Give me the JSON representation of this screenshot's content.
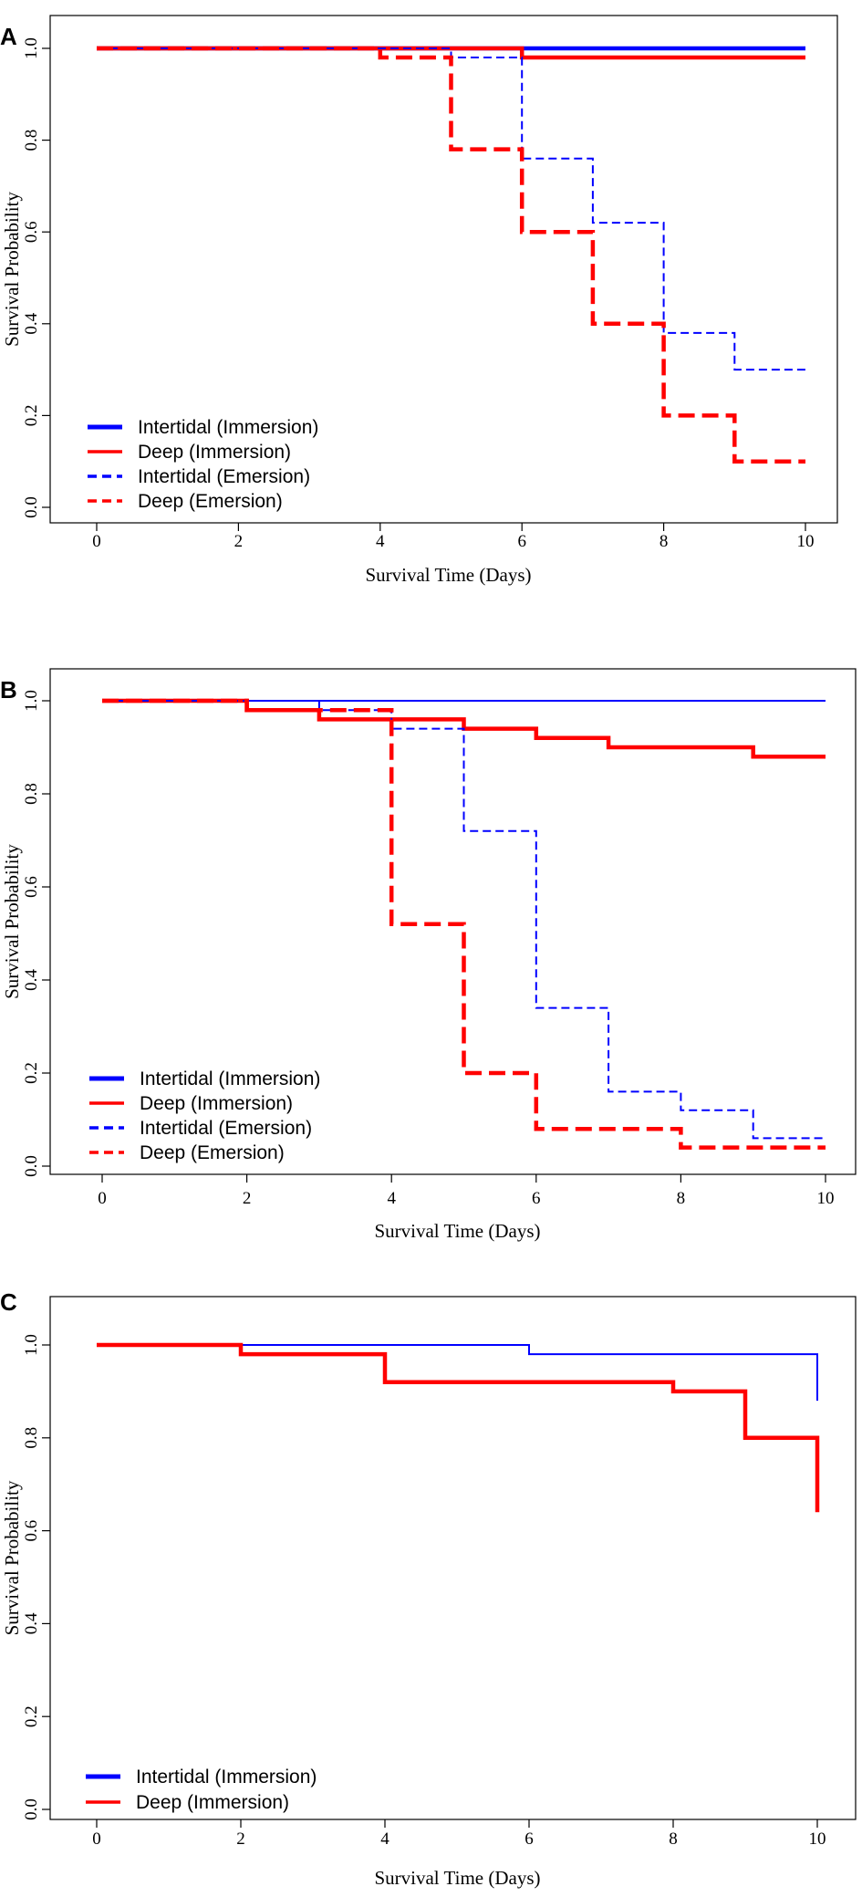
{
  "chart_data": [
    {
      "panel": "A",
      "type": "line",
      "xlabel": "Survival Time (Days)",
      "ylabel": "Survival Probability",
      "xlim": [
        0,
        10
      ],
      "ylim": [
        0,
        1
      ],
      "xticks": [
        "0",
        "2",
        "4",
        "6",
        "8",
        "10"
      ],
      "yticks": [
        "0.0",
        "0.2",
        "0.4",
        "0.6",
        "0.8",
        "1.0"
      ],
      "legend_position": "bottom-left",
      "series": [
        {
          "name": "Intertidal (Immersion)",
          "color": "#0000ff",
          "style": "solid",
          "weight": "thick",
          "steps": [
            [
              0,
              1.0
            ],
            [
              10,
              1.0
            ]
          ]
        },
        {
          "name": "Deep (Immersion)",
          "color": "#ff0000",
          "style": "solid",
          "weight": "thick",
          "steps": [
            [
              0,
              1.0
            ],
            [
              6,
              0.98
            ],
            [
              10,
              0.98
            ]
          ]
        },
        {
          "name": "Intertidal (Emersion)",
          "color": "#0000ff",
          "style": "dashed",
          "weight": "thin",
          "steps": [
            [
              0,
              1.0
            ],
            [
              5,
              0.98
            ],
            [
              6,
              0.76
            ],
            [
              7,
              0.62
            ],
            [
              8,
              0.38
            ],
            [
              9,
              0.3
            ],
            [
              10,
              0.3
            ]
          ]
        },
        {
          "name": "Deep (Emersion)",
          "color": "#ff0000",
          "style": "dashed",
          "weight": "thick",
          "steps": [
            [
              0,
              1.0
            ],
            [
              4,
              0.98
            ],
            [
              5,
              0.78
            ],
            [
              6,
              0.6
            ],
            [
              7,
              0.4
            ],
            [
              8,
              0.2
            ],
            [
              9,
              0.1
            ],
            [
              10,
              0.1
            ]
          ]
        }
      ]
    },
    {
      "panel": "B",
      "type": "line",
      "xlabel": "Survival Time (Days)",
      "ylabel": "Survival Probability",
      "xlim": [
        0,
        10
      ],
      "ylim": [
        0,
        1
      ],
      "xticks": [
        "0",
        "2",
        "4",
        "6",
        "8",
        "10"
      ],
      "yticks": [
        "0.0",
        "0.2",
        "0.4",
        "0.6",
        "0.8",
        "1.0"
      ],
      "legend_position": "bottom-left",
      "series": [
        {
          "name": "Intertidal (Immersion)",
          "color": "#0000ff",
          "style": "solid",
          "weight": "thin",
          "steps": [
            [
              0,
              1.0
            ],
            [
              10,
              1.0
            ]
          ]
        },
        {
          "name": "Deep (Immersion)",
          "color": "#ff0000",
          "style": "solid",
          "weight": "thick",
          "steps": [
            [
              0,
              1.0
            ],
            [
              2,
              0.98
            ],
            [
              3,
              0.96
            ],
            [
              5,
              0.94
            ],
            [
              6,
              0.92
            ],
            [
              7,
              0.9
            ],
            [
              9,
              0.88
            ],
            [
              10,
              0.88
            ]
          ]
        },
        {
          "name": "Intertidal (Emersion)",
          "color": "#0000ff",
          "style": "dashed",
          "weight": "thin",
          "steps": [
            [
              0,
              1.0
            ],
            [
              3,
              0.98
            ],
            [
              4,
              0.94
            ],
            [
              5,
              0.72
            ],
            [
              6,
              0.34
            ],
            [
              7,
              0.16
            ],
            [
              8,
              0.12
            ],
            [
              9,
              0.06
            ],
            [
              10,
              0.06
            ]
          ]
        },
        {
          "name": "Deep (Emersion)",
          "color": "#ff0000",
          "style": "dashed",
          "weight": "thick",
          "steps": [
            [
              0,
              1.0
            ],
            [
              2,
              0.98
            ],
            [
              4,
              0.52
            ],
            [
              5,
              0.2
            ],
            [
              6,
              0.08
            ],
            [
              8,
              0.04
            ],
            [
              10,
              0.04
            ]
          ]
        }
      ]
    },
    {
      "panel": "C",
      "type": "line",
      "xlabel": "Survival Time (Days)",
      "ylabel": "Survival Probability",
      "xlim": [
        0,
        10
      ],
      "ylim": [
        0,
        1
      ],
      "xticks": [
        "0",
        "2",
        "4",
        "6",
        "8",
        "10"
      ],
      "yticks": [
        "0.0",
        "0.2",
        "0.4",
        "0.6",
        "0.8",
        "1.0"
      ],
      "legend_position": "bottom-left",
      "series": [
        {
          "name": "Intertidal (Immersion)",
          "color": "#0000ff",
          "style": "solid",
          "weight": "thin",
          "steps": [
            [
              0,
              1.0
            ],
            [
              6,
              0.98
            ],
            [
              10,
              0.88
            ]
          ]
        },
        {
          "name": "Deep (Immersion)",
          "color": "#ff0000",
          "style": "solid",
          "weight": "thick",
          "steps": [
            [
              0,
              1.0
            ],
            [
              2,
              0.98
            ],
            [
              4,
              0.92
            ],
            [
              8,
              0.9
            ],
            [
              9,
              0.8
            ],
            [
              10,
              0.64
            ]
          ]
        }
      ]
    }
  ]
}
